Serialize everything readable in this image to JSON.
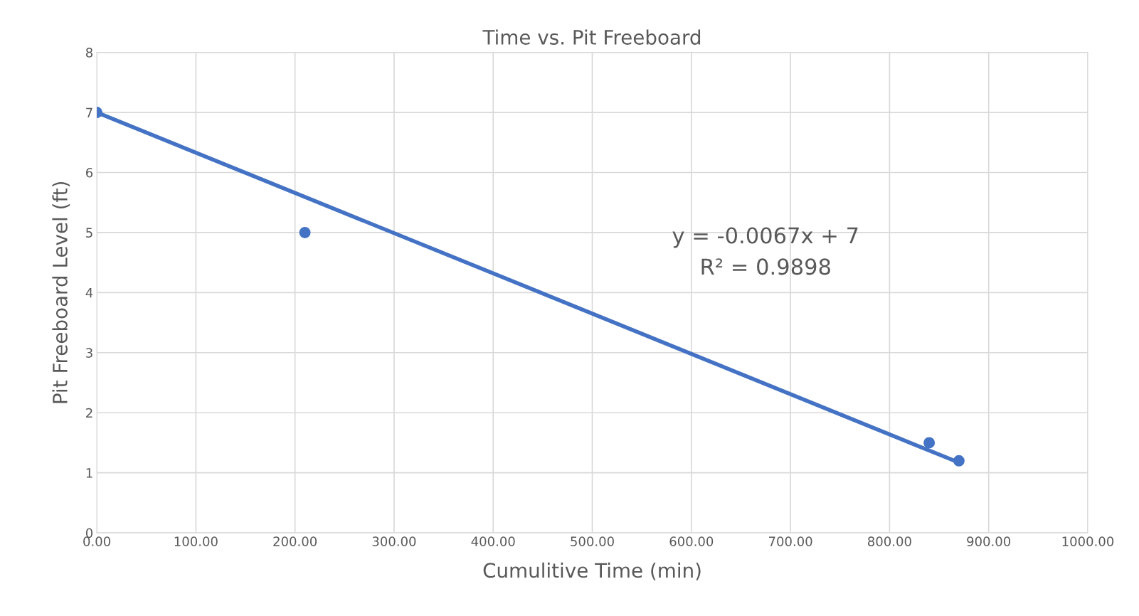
{
  "chart_data": {
    "type": "scatter",
    "title": "Time vs. Pit Freeboard",
    "xlabel": "Cumulitive Time (min)",
    "ylabel": "Pit Freeboard Level (ft)",
    "series": [
      {
        "color": "#4472c4",
        "x": [
          0,
          210,
          840,
          870
        ],
        "values": [
          7,
          5,
          1.5,
          1.2
        ],
        "marker": "circle"
      },
      {
        "type": "line",
        "color": "#4472c4",
        "x": [
          0,
          870
        ],
        "values": [
          7,
          1.17
        ],
        "marker": "none",
        "line_style": "solid"
      }
    ],
    "annotations": [
      "y = -0.0067x + 7",
      "R² = 0.9898"
    ],
    "xlim": [
      0,
      1000
    ],
    "ylim": [
      0,
      8
    ],
    "xticks": [
      {
        "value": 0,
        "label": "0.00"
      },
      {
        "value": 100,
        "label": "100.00"
      },
      {
        "value": 200,
        "label": "200.00"
      },
      {
        "value": 300,
        "label": "300.00"
      },
      {
        "value": 400,
        "label": "400.00"
      },
      {
        "value": 500,
        "label": "500.00"
      },
      {
        "value": 600,
        "label": "600.00"
      },
      {
        "value": 700,
        "label": "700.00"
      },
      {
        "value": 800,
        "label": "800.00"
      },
      {
        "value": 900,
        "label": "900.00"
      },
      {
        "value": 1000,
        "label": "1000.00"
      }
    ],
    "yticks": [
      0,
      1,
      2,
      3,
      4,
      5,
      6,
      7,
      8
    ],
    "grid": true,
    "legend": false
  }
}
